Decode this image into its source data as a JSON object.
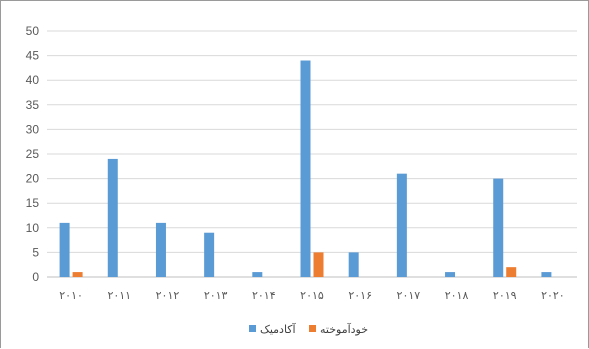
{
  "chart_data": {
    "type": "bar",
    "categories": [
      "۲۰۱۰",
      "۲۰۱۱",
      "۲۰۱۲",
      "۲۰۱۳",
      "۲۰۱۴",
      "۲۰۱۵",
      "۲۰۱۶",
      "۲۰۱۷",
      "۲۰۱۸",
      "۲۰۱۹",
      "۲۰۲۰"
    ],
    "series": [
      {
        "name": "آکادمیک",
        "color": "#5b9bd5",
        "values": [
          11,
          24,
          11,
          9,
          1,
          44,
          5,
          21,
          1,
          20,
          1
        ]
      },
      {
        "name": "خودآموخته",
        "color": "#ed7d31",
        "values": [
          1,
          0,
          0,
          0,
          0,
          5,
          0,
          0,
          0,
          2,
          0
        ]
      }
    ],
    "ylim": [
      0,
      50
    ],
    "yticks": [
      0,
      5,
      10,
      15,
      20,
      25,
      30,
      35,
      40,
      45,
      50
    ],
    "grid": true,
    "legend": "bottom"
  }
}
